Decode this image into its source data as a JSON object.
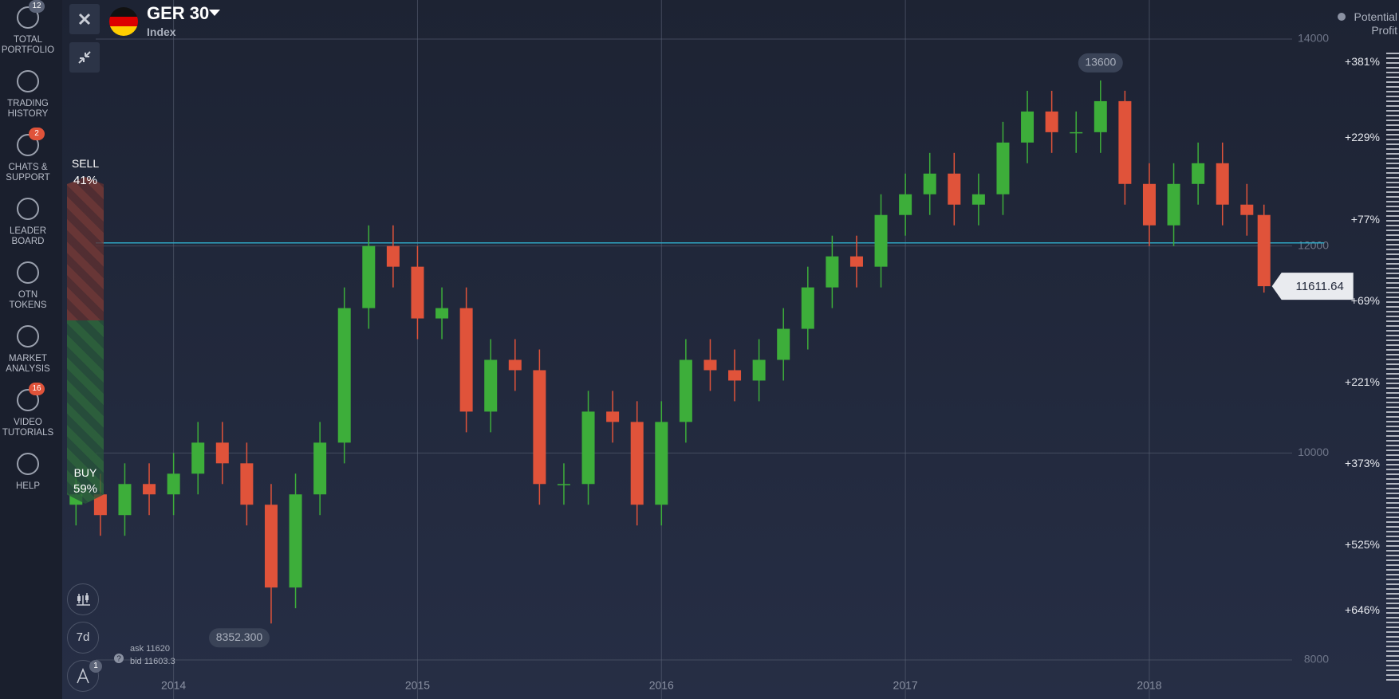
{
  "sidebar": {
    "items": [
      {
        "label": "TOTAL PORTFOLIO",
        "badge": 12
      },
      {
        "label": "TRADING HISTORY"
      },
      {
        "label": "CHATS & SUPPORT",
        "badge": 2
      },
      {
        "label": "LEADER BOARD"
      },
      {
        "label": "OTN TOKENS"
      },
      {
        "label": "MARKET ANALYSIS"
      },
      {
        "label": "VIDEO TUTORIALS",
        "badge": 16
      },
      {
        "label": "HELP"
      }
    ]
  },
  "header": {
    "instrument": "GER 30",
    "subtitle": "Index"
  },
  "sentiment": {
    "sell_label": "SELL",
    "sell_value": "41%",
    "buy_label": "BUY",
    "buy_value": "59%"
  },
  "toolbar": {
    "period": "7d",
    "badge": 1
  },
  "quote": {
    "ask": "ask 11620",
    "bid": "bid 11603.3"
  },
  "profit": {
    "title": "Potential Profit",
    "levels": [
      "+381%",
      "+229%",
      "+77%",
      "+69%",
      "+221%",
      "+373%",
      "+525%",
      "+646%"
    ]
  },
  "chart_data": {
    "type": "candlestick",
    "x": [
      2013.6,
      2013.7,
      2013.8,
      2013.9,
      2014.0,
      2014.1,
      2014.2,
      2014.3,
      2014.4,
      2014.5,
      2014.6,
      2014.7,
      2014.8,
      2014.9,
      2015.0,
      2015.1,
      2015.2,
      2015.3,
      2015.4,
      2015.5,
      2015.6,
      2015.7,
      2015.8,
      2015.9,
      2016.0,
      2016.1,
      2016.2,
      2016.3,
      2016.4,
      2016.5,
      2016.6,
      2016.7,
      2016.8,
      2016.9,
      2017.0,
      2017.1,
      2017.2,
      2017.3,
      2017.4,
      2017.5,
      2017.6,
      2017.7,
      2017.8,
      2017.9,
      2018.0,
      2018.1,
      2018.2,
      2018.3,
      2018.4,
      2018.47
    ],
    "open": [
      9500,
      9600,
      9400,
      9700,
      9600,
      9800,
      10100,
      9900,
      9500,
      8700,
      9600,
      10100,
      11400,
      12000,
      11800,
      11300,
      11400,
      10400,
      10900,
      10800,
      9700,
      9700,
      10400,
      10300,
      9500,
      10300,
      10900,
      10800,
      10700,
      10900,
      11200,
      11600,
      11900,
      11800,
      12300,
      12500,
      12700,
      12400,
      12500,
      13000,
      13300,
      13100,
      13100,
      13400,
      12600,
      12200,
      12600,
      12800,
      12400,
      12300
    ],
    "high": [
      9800,
      9800,
      9900,
      9900,
      10000,
      10300,
      10300,
      10100,
      9700,
      9800,
      10300,
      11600,
      12200,
      12200,
      12000,
      11600,
      11600,
      11100,
      11100,
      11000,
      9900,
      10600,
      10600,
      10500,
      10500,
      11100,
      11100,
      11000,
      11100,
      11400,
      11800,
      12100,
      12100,
      12500,
      12700,
      12900,
      12900,
      12700,
      13200,
      13500,
      13500,
      13300,
      13600,
      13500,
      12800,
      12800,
      13000,
      13000,
      12600,
      12400
    ],
    "low": [
      9300,
      9200,
      9200,
      9400,
      9400,
      9600,
      9700,
      9300,
      8352.3,
      8500,
      9400,
      9900,
      11200,
      11600,
      11100,
      11100,
      10200,
      10200,
      10600,
      9500,
      9500,
      9500,
      10100,
      9300,
      9300,
      10100,
      10600,
      10500,
      10500,
      10700,
      11000,
      11400,
      11600,
      11600,
      12100,
      12300,
      12200,
      12200,
      12300,
      12800,
      12900,
      12900,
      12900,
      12400,
      12000,
      12000,
      12400,
      12200,
      12100,
      11550
    ],
    "close": [
      9600,
      9400,
      9700,
      9600,
      9800,
      10100,
      9900,
      9500,
      8700,
      9600,
      10100,
      11400,
      12000,
      11800,
      11300,
      11400,
      10400,
      10900,
      10800,
      9700,
      9700,
      10400,
      10300,
      9500,
      10300,
      10900,
      10800,
      10700,
      10900,
      11200,
      11600,
      11900,
      11800,
      12300,
      12500,
      12700,
      12400,
      12500,
      13000,
      13300,
      13100,
      13100,
      13400,
      12600,
      12200,
      12600,
      12800,
      12400,
      12300,
      11611.64
    ],
    "up_color": "#3dae3a",
    "down_color": "#e0533a",
    "xlim": [
      2013.55,
      2018.52
    ],
    "xticks": [
      2014,
      2015,
      2016,
      2017,
      2018
    ],
    "ylim": [
      8000,
      14000
    ],
    "yticks": [
      8000,
      10000,
      12000,
      14000
    ],
    "grid": true,
    "max_label": 13600,
    "min_label": {
      "value": 8352.3,
      "label": "8352.300"
    },
    "last_price": 11611.64,
    "reference_line": 12030,
    "reference_color": "#2fa6c4"
  }
}
